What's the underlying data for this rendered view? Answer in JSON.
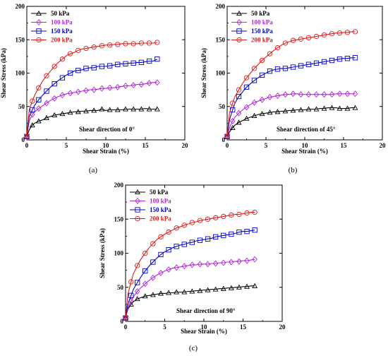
{
  "chart_data": [
    {
      "type": "line",
      "panel": "(a)",
      "annotation": "Shear direction of 0°",
      "xlabel": "Shear Strain (%)",
      "ylabel": "Shear Stress (kPa)",
      "xlim": [
        0,
        20
      ],
      "ylim": [
        0,
        200
      ],
      "xticks": [
        "0",
        "5",
        "10",
        "15",
        "20"
      ],
      "yticks": [
        "0",
        "50",
        "100",
        "150",
        "200"
      ],
      "legend": "top-left",
      "series": [
        {
          "name": "50 kPa",
          "color": "#000000",
          "marker": "triangle",
          "x": [
            0,
            0.3,
            0.7,
            1,
            1.5,
            2,
            2.5,
            3,
            3.5,
            4,
            4.5,
            5,
            5.5,
            6,
            6.5,
            7,
            7.5,
            8,
            8.5,
            9,
            9.5,
            10,
            10.5,
            11,
            11.5,
            12,
            12.5,
            13,
            13.5,
            14,
            14.5,
            15,
            15.5,
            16,
            16.5
          ],
          "y": [
            5,
            15,
            22,
            25,
            28,
            30,
            33,
            35,
            37,
            38,
            39,
            40,
            41,
            42,
            42,
            43,
            43,
            44,
            44,
            44,
            46,
            44,
            45,
            45,
            45,
            45,
            46,
            46,
            46,
            46,
            46,
            47,
            46,
            46,
            46
          ]
        },
        {
          "name": "100 kPa",
          "color": "#b326d9",
          "marker": "diamond",
          "x": [
            0,
            0.3,
            0.7,
            1,
            1.5,
            2,
            2.5,
            3,
            3.5,
            4,
            4.5,
            5,
            5.5,
            6,
            6.5,
            7,
            7.5,
            8,
            8.5,
            9,
            9.5,
            10,
            10.5,
            11,
            11.5,
            12,
            12.5,
            13,
            13.5,
            14,
            14.5,
            15,
            15.5,
            16,
            16.5
          ],
          "y": [
            5,
            28,
            38,
            42,
            47,
            51,
            55,
            59,
            62,
            65,
            67,
            69,
            70,
            71,
            72,
            73,
            74,
            75,
            75,
            76,
            77,
            77,
            78,
            78,
            79,
            80,
            81,
            81,
            82,
            83,
            83,
            84,
            85,
            86,
            86
          ]
        },
        {
          "name": "150 kPa",
          "color": "#0000cc",
          "marker": "square",
          "x": [
            0,
            0.3,
            0.7,
            1,
            1.5,
            2,
            2.5,
            3,
            3.5,
            4,
            4.5,
            5,
            5.5,
            6,
            6.5,
            7,
            7.5,
            8,
            8.5,
            9,
            9.5,
            10,
            10.5,
            11,
            11.5,
            12,
            12.5,
            13,
            13.5,
            14,
            14.5,
            15,
            15.5,
            16,
            16.5
          ],
          "y": [
            5,
            35,
            45,
            52,
            60,
            67,
            73,
            79,
            84,
            89,
            93,
            97,
            100,
            103,
            104,
            105,
            107,
            108,
            108,
            110,
            110,
            110,
            111,
            112,
            113,
            114,
            114,
            115,
            115,
            116,
            116,
            117,
            118,
            118,
            121
          ]
        },
        {
          "name": "200 kPa",
          "color": "#e01818",
          "marker": "circle",
          "x": [
            0,
            0.3,
            0.7,
            1,
            1.5,
            2,
            2.5,
            3,
            3.5,
            4,
            4.5,
            5,
            5.5,
            6,
            6.5,
            7,
            7.5,
            8,
            8.5,
            9,
            9.5,
            10,
            10.5,
            11,
            11.5,
            12,
            12.5,
            13,
            13.5,
            14,
            14.5,
            15,
            15.5,
            16,
            16.5
          ],
          "y": [
            5,
            45,
            58,
            67,
            78,
            88,
            96,
            103,
            110,
            116,
            121,
            126,
            129,
            131,
            134,
            136,
            137,
            138,
            139,
            140,
            141,
            142,
            142,
            143,
            143,
            144,
            144,
            144,
            144,
            144,
            145,
            145,
            145,
            145,
            146
          ]
        }
      ]
    },
    {
      "type": "line",
      "panel": "(b)",
      "annotation": "Shear direction of  45°",
      "xlabel": "Shear Strain (%)",
      "ylabel": "Shear Stress (kPa)",
      "xlim": [
        0,
        20
      ],
      "ylim": [
        0,
        200
      ],
      "xticks": [
        "0",
        "5",
        "10",
        "15",
        "20"
      ],
      "yticks": [
        "0",
        "50",
        "100",
        "150",
        "200"
      ],
      "legend": "top-left",
      "series": [
        {
          "name": "50 kPa",
          "color": "#000000",
          "marker": "triangle",
          "x": [
            0,
            0.3,
            0.7,
            1,
            1.5,
            2,
            2.5,
            3,
            3.5,
            4,
            4.5,
            5,
            5.5,
            6,
            6.5,
            7,
            7.5,
            8,
            8.5,
            9,
            9.5,
            10,
            10.5,
            11,
            11.5,
            12,
            12.5,
            13,
            13.5,
            14,
            14.5,
            15,
            15.5,
            16,
            16.5
          ],
          "y": [
            5,
            12,
            18,
            22,
            26,
            29,
            32,
            34,
            36,
            38,
            39,
            40,
            41,
            42,
            42,
            43,
            43,
            44,
            44,
            45,
            45,
            45,
            46,
            46,
            46,
            47,
            47,
            48,
            48,
            48,
            47,
            47,
            47,
            48,
            48
          ]
        },
        {
          "name": "100 kPa",
          "color": "#b326d9",
          "marker": "diamond",
          "x": [
            0,
            0.3,
            0.7,
            1,
            1.5,
            2,
            2.5,
            3,
            3.5,
            4,
            4.5,
            5,
            5.5,
            6,
            6.5,
            7,
            7.5,
            8,
            8.5,
            9,
            9.5,
            10,
            10.5,
            11,
            11.5,
            12,
            12.5,
            13,
            13.5,
            14,
            14.5,
            15,
            15.5,
            16,
            16.5
          ],
          "y": [
            5,
            18,
            28,
            34,
            40,
            45,
            49,
            53,
            56,
            58,
            60,
            62,
            64,
            65,
            66,
            67,
            68,
            68,
            69,
            69,
            68,
            68,
            68,
            68,
            68,
            68,
            68,
            68,
            68,
            69,
            69,
            69,
            69,
            69,
            69
          ]
        },
        {
          "name": "150 kPa",
          "color": "#0000cc",
          "marker": "square",
          "x": [
            0,
            0.3,
            0.7,
            1,
            1.5,
            2,
            2.5,
            3,
            3.5,
            4,
            4.5,
            5,
            5.5,
            6,
            6.5,
            7,
            7.5,
            8,
            8.5,
            9,
            9.5,
            10,
            10.5,
            11,
            11.5,
            12,
            12.5,
            13,
            13.5,
            14,
            14.5,
            15,
            15.5,
            16,
            16.5
          ],
          "y": [
            5,
            30,
            45,
            55,
            65,
            72,
            79,
            84,
            89,
            93,
            97,
            100,
            103,
            105,
            106,
            107,
            107,
            108,
            109,
            110,
            111,
            112,
            113,
            114,
            115,
            116,
            117,
            118,
            119,
            120,
            121,
            122,
            122,
            123,
            123
          ]
        },
        {
          "name": "200 kPa",
          "color": "#e01818",
          "marker": "circle",
          "x": [
            0,
            0.3,
            0.7,
            1,
            1.5,
            2,
            2.5,
            3,
            3.5,
            4,
            4.5,
            5,
            5.5,
            6,
            6.5,
            7,
            7.5,
            8,
            8.5,
            9,
            9.5,
            10,
            10.5,
            11,
            11.5,
            12,
            12.5,
            13,
            13.5,
            14,
            14.5,
            15,
            15.5,
            16,
            16.5
          ],
          "y": [
            5,
            40,
            55,
            65,
            75,
            85,
            93,
            100,
            107,
            113,
            119,
            124,
            129,
            134,
            138,
            142,
            145,
            147,
            149,
            150,
            151,
            152,
            153,
            154,
            155,
            156,
            157,
            158,
            159,
            160,
            160,
            161,
            161,
            162,
            162
          ]
        }
      ]
    },
    {
      "type": "line",
      "panel": "(c)",
      "annotation": "Shear direction of 90°",
      "xlabel": "Shear Strain (%)",
      "ylabel": "Shear Stress (kPa)",
      "xlim": [
        0,
        20
      ],
      "ylim": [
        0,
        200
      ],
      "xticks": [
        "0",
        "5",
        "10",
        "15",
        "20"
      ],
      "yticks": [
        "0",
        "50",
        "100",
        "150",
        "200"
      ],
      "legend": "top-left",
      "series": [
        {
          "name": "50 kPa",
          "color": "#000000",
          "marker": "triangle",
          "x": [
            0,
            0.3,
            0.7,
            1,
            1.5,
            2,
            2.5,
            3,
            3.5,
            4,
            4.5,
            5,
            5.5,
            6,
            6.5,
            7,
            7.5,
            8,
            8.5,
            9,
            9.5,
            10,
            10.5,
            11,
            11.5,
            12,
            12.5,
            13,
            13.5,
            14,
            14.5,
            15,
            15.5,
            16,
            16.5
          ],
          "y": [
            5,
            18,
            25,
            29,
            33,
            35,
            37,
            38,
            39,
            40,
            41,
            41,
            42,
            42,
            43,
            43,
            43,
            44,
            44,
            45,
            45,
            46,
            46,
            47,
            47,
            48,
            48,
            49,
            49,
            50,
            50,
            51,
            51,
            52,
            52
          ]
        },
        {
          "name": "100 kPa",
          "color": "#b326d9",
          "marker": "diamond",
          "x": [
            0,
            0.3,
            0.7,
            1,
            1.5,
            2,
            2.5,
            3,
            3.5,
            4,
            4.5,
            5,
            5.5,
            6,
            6.5,
            7,
            7.5,
            8,
            8.5,
            9,
            9.5,
            10,
            10.5,
            11,
            11.5,
            12,
            12.5,
            13,
            13.5,
            14,
            14.5,
            15,
            15.5,
            16,
            16.5
          ],
          "y": [
            5,
            20,
            30,
            36,
            44,
            50,
            55,
            60,
            64,
            68,
            71,
            74,
            76,
            78,
            79,
            80,
            81,
            82,
            83,
            83,
            84,
            84,
            84,
            85,
            85,
            86,
            86,
            87,
            87,
            88,
            88,
            89,
            89,
            90,
            91
          ]
        },
        {
          "name": "150 kPa",
          "color": "#0000cc",
          "marker": "square",
          "x": [
            0,
            0.3,
            0.7,
            1,
            1.5,
            2,
            2.5,
            3,
            3.5,
            4,
            4.5,
            5,
            5.5,
            6,
            6.5,
            7,
            7.5,
            8,
            8.5,
            9,
            9.5,
            10,
            10.5,
            11,
            11.5,
            12,
            12.5,
            13,
            13.5,
            14,
            14.5,
            15,
            15.5,
            16,
            16.5
          ],
          "y": [
            5,
            25,
            38,
            47,
            57,
            66,
            74,
            81,
            87,
            93,
            98,
            102,
            105,
            108,
            110,
            112,
            113,
            115,
            116,
            118,
            119,
            120,
            121,
            122,
            124,
            125,
            126,
            127,
            128,
            129,
            131,
            132,
            132,
            133,
            134
          ]
        },
        {
          "name": "200 kPa",
          "color": "#e01818",
          "marker": "circle",
          "x": [
            0,
            0.3,
            0.7,
            1,
            1.5,
            2,
            2.5,
            3,
            3.5,
            4,
            4.5,
            5,
            5.5,
            6,
            6.5,
            7,
            7.5,
            8,
            8.5,
            9,
            9.5,
            10,
            10.5,
            11,
            11.5,
            12,
            12.5,
            13,
            13.5,
            14,
            14.5,
            15,
            15.5,
            16,
            16.5
          ],
          "y": [
            5,
            40,
            58,
            70,
            82,
            92,
            100,
            108,
            114,
            120,
            124,
            128,
            131,
            134,
            137,
            139,
            141,
            143,
            145,
            146,
            148,
            149,
            150,
            151,
            152,
            153,
            154,
            155,
            156,
            157,
            157,
            158,
            159,
            160,
            160
          ]
        }
      ]
    }
  ]
}
